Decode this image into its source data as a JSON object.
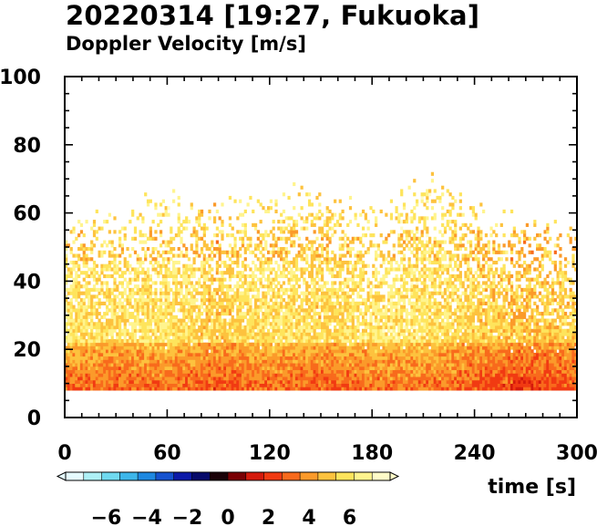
{
  "header": {
    "title": "20220314 [19:27, Fukuoka]",
    "subtitle": "Doppler Velocity [m/s]"
  },
  "chart_data": {
    "type": "heatmap",
    "title": "20220314 [19:27, Fukuoka]",
    "subtitle": "Doppler Velocity [m/s]",
    "xlabel": "time [s]",
    "ylabel": "",
    "xlim": [
      0,
      300
    ],
    "ylim": [
      0,
      100
    ],
    "x_ticks": [
      0,
      60,
      120,
      180,
      240,
      300
    ],
    "y_ticks": [
      0,
      20,
      40,
      60,
      80,
      100
    ],
    "grid": false,
    "data_floor": 8,
    "colorbar": {
      "label": "Doppler Velocity [m/s]",
      "range": [
        -8,
        8
      ],
      "ticks": [
        -6,
        -4,
        -2,
        0,
        2,
        4,
        6
      ],
      "tick_labels": [
        "−6",
        "−4",
        "−2",
        "0",
        "2",
        "4",
        "6"
      ],
      "colors": [
        "#e6fbff",
        "#aef0f6",
        "#6fd9ef",
        "#3db6ea",
        "#1e88e0",
        "#1552cf",
        "#0c1aa8",
        "#060a6a",
        "#1a0208",
        "#7a0004",
        "#d41a0c",
        "#f13a12",
        "#f86a1c",
        "#fb9a2a",
        "#fdc23e",
        "#fee45c",
        "#fff48e",
        "#fffbc8"
      ]
    },
    "mean_profile": [
      {
        "time": 0,
        "top": 58,
        "mean_velocity": 4.8
      },
      {
        "time": 30,
        "top": 60,
        "mean_velocity": 4.6
      },
      {
        "time": 60,
        "top": 68,
        "mean_velocity": 4.9
      },
      {
        "time": 90,
        "top": 62,
        "mean_velocity": 4.3
      },
      {
        "time": 120,
        "top": 65,
        "mean_velocity": 4.8
      },
      {
        "time": 150,
        "top": 69,
        "mean_velocity": 4.5
      },
      {
        "time": 180,
        "top": 60,
        "mean_velocity": 4.9
      },
      {
        "time": 210,
        "top": 72,
        "mean_velocity": 5.0
      },
      {
        "time": 240,
        "top": 62,
        "mean_velocity": 4.4
      },
      {
        "time": 270,
        "top": 58,
        "mean_velocity": 3.9
      },
      {
        "time": 300,
        "top": 55,
        "mean_velocity": 4.4
      }
    ]
  }
}
